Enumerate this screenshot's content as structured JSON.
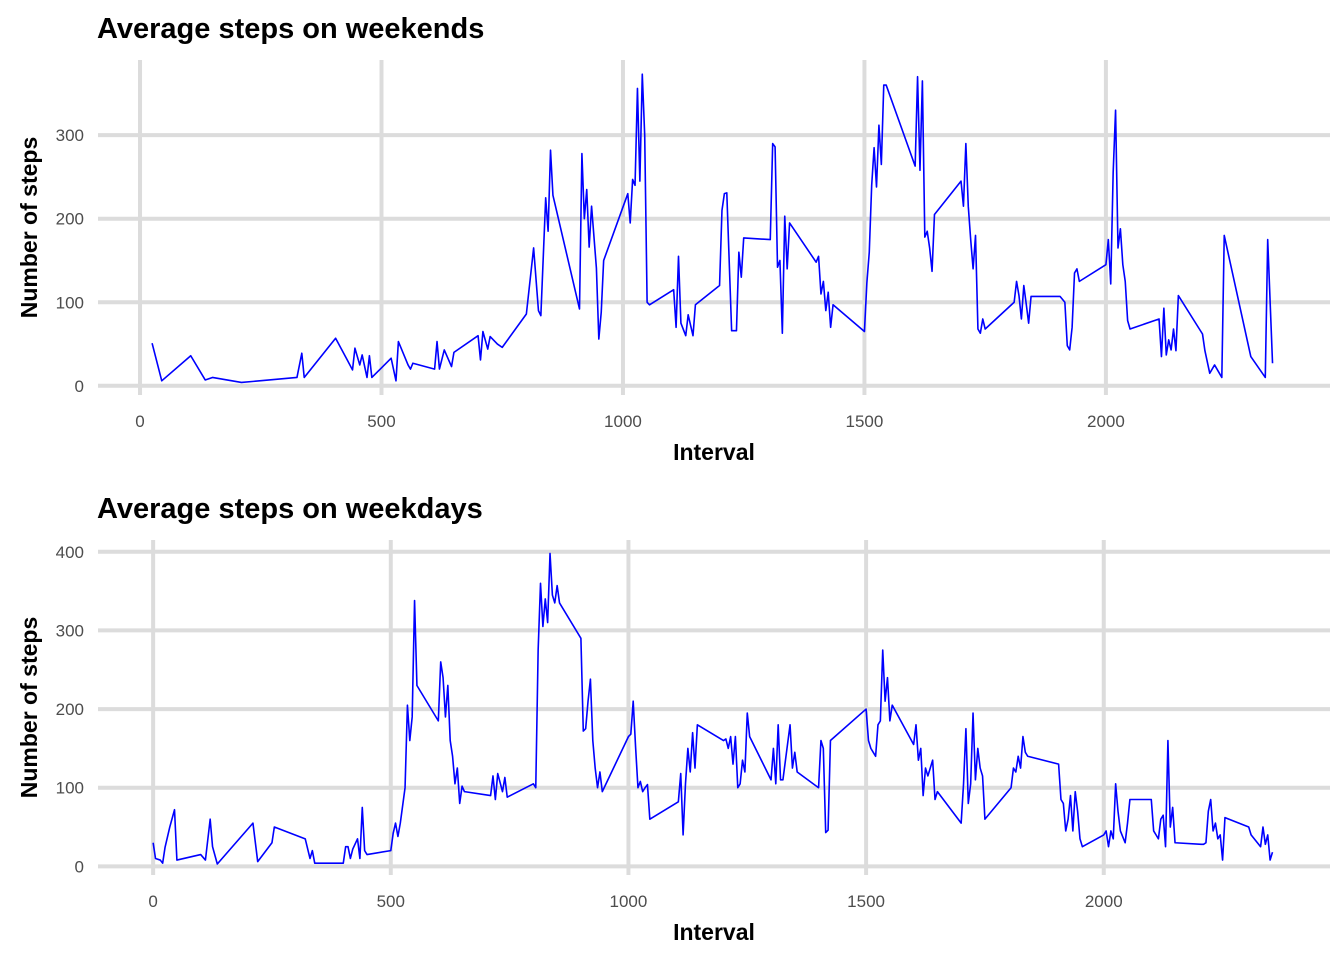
{
  "chart_data": [
    {
      "type": "line",
      "title": "Average steps on weekends",
      "xlabel": "Interval",
      "ylabel": "Number of steps",
      "color": "#0000ff",
      "grid": true,
      "xlim": [
        -87,
        2464
      ],
      "ylim": [
        -11,
        390
      ],
      "xticks": [
        0,
        500,
        1000,
        1500,
        2000
      ],
      "yticks": [
        0,
        100,
        200,
        300
      ],
      "x": [
        25,
        45,
        105,
        135,
        150,
        210,
        325,
        335,
        340,
        405,
        430,
        440,
        445,
        455,
        460,
        470,
        475,
        480,
        520,
        530,
        535,
        555,
        560,
        565,
        610,
        615,
        620,
        630,
        645,
        650,
        700,
        705,
        710,
        720,
        725,
        740,
        750,
        800,
        815,
        825,
        830,
        840,
        845,
        850,
        855,
        910,
        915,
        920,
        925,
        930,
        935,
        945,
        950,
        955,
        960,
        1010,
        1015,
        1020,
        1025,
        1030,
        1035,
        1040,
        1045,
        1050,
        1055,
        1105,
        1110,
        1115,
        1120,
        1130,
        1135,
        1145,
        1150,
        1200,
        1205,
        1210,
        1215,
        1225,
        1235,
        1240,
        1245,
        1250,
        1305,
        1310,
        1315,
        1320,
        1325,
        1330,
        1335,
        1340,
        1345,
        1400,
        1405,
        1410,
        1415,
        1420,
        1425,
        1430,
        1435,
        1500,
        1505,
        1510,
        1515,
        1520,
        1525,
        1530,
        1535,
        1540,
        1545,
        1605,
        1610,
        1615,
        1620,
        1625,
        1630,
        1635,
        1640,
        1645,
        1700,
        1705,
        1710,
        1715,
        1720,
        1725,
        1730,
        1735,
        1740,
        1745,
        1750,
        1810,
        1815,
        1820,
        1825,
        1830,
        1835,
        1840,
        1845,
        1900,
        1905,
        1915,
        1920,
        1925,
        1930,
        1935,
        1940,
        1945,
        2000,
        2005,
        2010,
        2015,
        2020,
        2025,
        2030,
        2035,
        2040,
        2045,
        2050,
        2110,
        2115,
        2120,
        2125,
        2130,
        2135,
        2140,
        2145,
        2150,
        2200,
        2205,
        2215,
        2225,
        2240,
        2245,
        2300,
        2330,
        2335,
        2345
      ],
      "values": [
        51,
        6,
        36,
        7,
        10,
        4,
        10,
        39,
        10,
        57,
        30,
        19,
        45,
        25,
        37,
        10,
        36,
        10,
        33,
        6,
        53,
        25,
        20,
        27,
        20,
        53,
        20,
        43,
        23,
        40,
        60,
        31,
        65,
        44,
        59,
        50,
        46,
        86,
        165,
        90,
        84,
        225,
        185,
        282,
        228,
        92,
        278,
        200,
        235,
        166,
        215,
        141,
        56,
        88,
        150,
        230,
        195,
        247,
        240,
        356,
        245,
        373,
        300,
        100,
        97,
        115,
        70,
        155,
        75,
        60,
        85,
        60,
        97,
        120,
        210,
        230,
        231,
        66,
        66,
        160,
        130,
        177,
        175,
        290,
        286,
        142,
        150,
        63,
        203,
        140,
        195,
        148,
        155,
        110,
        125,
        90,
        112,
        70,
        97,
        65,
        123,
        160,
        240,
        285,
        238,
        312,
        265,
        360,
        360,
        263,
        370,
        258,
        365,
        178,
        185,
        165,
        137,
        205,
        245,
        215,
        290,
        215,
        175,
        140,
        180,
        68,
        63,
        80,
        68,
        100,
        125,
        108,
        80,
        120,
        98,
        75,
        107,
        107,
        107,
        100,
        48,
        43,
        70,
        135,
        140,
        125,
        145,
        175,
        122,
        255,
        330,
        165,
        188,
        145,
        125,
        78,
        68,
        80,
        35,
        93,
        37,
        55,
        43,
        68,
        42,
        108,
        62,
        42,
        15,
        25,
        10,
        180,
        35,
        10,
        175,
        27
      ]
    },
    {
      "type": "line",
      "title": "Average steps on weekdays",
      "xlabel": "Interval",
      "ylabel": "Number of steps",
      "color": "#0000ff",
      "grid": true,
      "xlim": [
        -116,
        2476
      ],
      "ylim": [
        -11,
        415
      ],
      "xticks": [
        0,
        500,
        1000,
        1500,
        2000
      ],
      "yticks": [
        0,
        100,
        200,
        300,
        400
      ],
      "x": [
        0,
        5,
        15,
        20,
        25,
        35,
        45,
        50,
        100,
        110,
        120,
        125,
        135,
        210,
        220,
        250,
        255,
        320,
        330,
        335,
        340,
        400,
        405,
        410,
        415,
        420,
        430,
        435,
        440,
        445,
        450,
        500,
        505,
        510,
        515,
        520,
        530,
        535,
        540,
        545,
        550,
        555,
        600,
        605,
        610,
        615,
        620,
        625,
        630,
        635,
        640,
        645,
        650,
        655,
        710,
        715,
        720,
        725,
        735,
        740,
        745,
        800,
        805,
        810,
        815,
        820,
        825,
        830,
        835,
        840,
        845,
        850,
        855,
        900,
        905,
        910,
        915,
        920,
        925,
        930,
        935,
        940,
        945,
        1000,
        1005,
        1010,
        1015,
        1020,
        1025,
        1030,
        1035,
        1040,
        1045,
        1105,
        1110,
        1115,
        1120,
        1125,
        1130,
        1135,
        1140,
        1145,
        1200,
        1205,
        1210,
        1215,
        1220,
        1225,
        1230,
        1235,
        1240,
        1245,
        1250,
        1255,
        1300,
        1305,
        1310,
        1315,
        1320,
        1325,
        1340,
        1345,
        1350,
        1355,
        1400,
        1405,
        1410,
        1415,
        1420,
        1425,
        1500,
        1505,
        1510,
        1515,
        1520,
        1525,
        1530,
        1535,
        1540,
        1545,
        1550,
        1555,
        1600,
        1605,
        1610,
        1615,
        1620,
        1625,
        1630,
        1640,
        1645,
        1650,
        1700,
        1705,
        1710,
        1715,
        1720,
        1725,
        1730,
        1735,
        1740,
        1745,
        1750,
        1805,
        1810,
        1815,
        1820,
        1825,
        1830,
        1835,
        1840,
        1905,
        1910,
        1915,
        1920,
        1925,
        1930,
        1935,
        1940,
        1945,
        1950,
        1955,
        2000,
        2005,
        2010,
        2015,
        2020,
        2025,
        2030,
        2035,
        2045,
        2050,
        2055,
        2100,
        2105,
        2110,
        2115,
        2120,
        2125,
        2130,
        2135,
        2140,
        2145,
        2150,
        2205,
        2210,
        2215,
        2220,
        2225,
        2230,
        2235,
        2240,
        2245,
        2250,
        2255,
        2305,
        2310,
        2330,
        2335,
        2340,
        2345,
        2350,
        2355
      ],
      "values": [
        30,
        10,
        8,
        4,
        24,
        50,
        72,
        8,
        15,
        8,
        60,
        25,
        3,
        55,
        6,
        30,
        50,
        35,
        10,
        20,
        4,
        4,
        25,
        25,
        10,
        22,
        35,
        10,
        75,
        20,
        15,
        20,
        42,
        55,
        38,
        55,
        100,
        205,
        160,
        190,
        338,
        230,
        185,
        260,
        240,
        190,
        230,
        160,
        140,
        105,
        125,
        80,
        102,
        95,
        90,
        115,
        85,
        118,
        95,
        113,
        88,
        105,
        100,
        275,
        360,
        305,
        340,
        310,
        398,
        345,
        335,
        357,
        335,
        290,
        172,
        175,
        210,
        238,
        160,
        125,
        100,
        120,
        95,
        165,
        168,
        210,
        152,
        100,
        108,
        95,
        100,
        104,
        60,
        82,
        118,
        40,
        105,
        150,
        120,
        170,
        125,
        180,
        160,
        162,
        150,
        165,
        130,
        165,
        100,
        105,
        135,
        120,
        195,
        165,
        110,
        150,
        105,
        180,
        110,
        110,
        180,
        125,
        145,
        120,
        100,
        160,
        150,
        43,
        46,
        160,
        200,
        160,
        150,
        145,
        140,
        180,
        185,
        275,
        210,
        240,
        185,
        205,
        155,
        180,
        135,
        150,
        90,
        125,
        115,
        135,
        85,
        95,
        55,
        105,
        175,
        80,
        105,
        195,
        110,
        150,
        125,
        115,
        60,
        100,
        125,
        120,
        140,
        125,
        165,
        145,
        140,
        130,
        85,
        80,
        45,
        60,
        90,
        45,
        95,
        70,
        35,
        25,
        40,
        45,
        25,
        45,
        35,
        105,
        70,
        45,
        30,
        55,
        85,
        85,
        45,
        40,
        35,
        60,
        65,
        25,
        160,
        50,
        75,
        30,
        28,
        28,
        30,
        70,
        85,
        45,
        55,
        35,
        40,
        8,
        62,
        50,
        40,
        25,
        50,
        28,
        40,
        8,
        18
      ]
    }
  ]
}
